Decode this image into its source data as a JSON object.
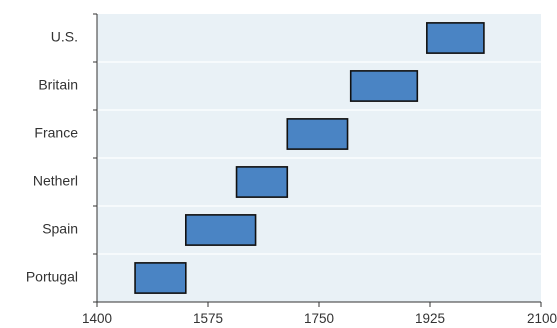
{
  "colors": {
    "plot_bg": "#e9f1f6",
    "bar_fill": "#4a84c4",
    "bar_stroke": "#111111",
    "axis": "#333333",
    "grid": "#ffffff"
  },
  "chart_data": {
    "type": "bar",
    "orientation": "horizontal-range",
    "title": "",
    "xlabel": "",
    "ylabel": "",
    "xlim": [
      1400,
      2100
    ],
    "xticks": [
      1400,
      1575,
      1750,
      1925,
      2100
    ],
    "grid": "horizontal",
    "legend": "none",
    "categories": [
      "Portugal",
      "Spain",
      "Netherl",
      "France",
      "Britain",
      "U.S."
    ],
    "ranges": [
      {
        "start": 1460,
        "end": 1540
      },
      {
        "start": 1540,
        "end": 1650
      },
      {
        "start": 1620,
        "end": 1700
      },
      {
        "start": 1700,
        "end": 1795
      },
      {
        "start": 1800,
        "end": 1905
      },
      {
        "start": 1920,
        "end": 2010
      }
    ]
  }
}
